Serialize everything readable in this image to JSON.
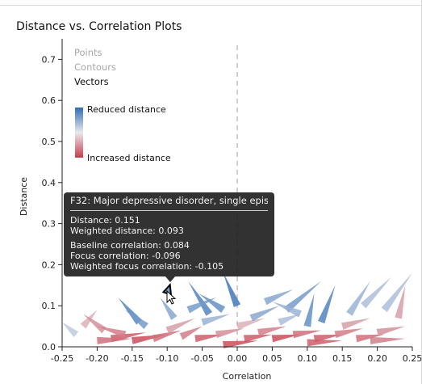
{
  "page": {
    "title": "Distance vs. Correlation Plots"
  },
  "layers": [
    {
      "label": "Points",
      "active": false
    },
    {
      "label": "Contours",
      "active": false
    },
    {
      "label": "Vectors",
      "active": true
    }
  ],
  "legend": {
    "reduced_label": "Reduced distance",
    "increased_label": "Increased distance",
    "reduced_color": "#2f6db5",
    "increased_color": "#c83c4b"
  },
  "tooltip": {
    "title": "F32: Major depressive disorder, single episode",
    "distance": "Distance: 0.151",
    "weighted_distance": "Weighted distance: 0.093",
    "baseline_correlation": "Baseline correlation: 0.084",
    "focus_correlation": "Focus correlation: -0.096",
    "weighted_focus_correlation": "Weighted focus correlation: -0.105"
  },
  "chart_data": {
    "type": "scatter",
    "title": "Distance vs. Correlation Plots",
    "xlabel": "Correlation",
    "ylabel": "Distance",
    "xlim": [
      -0.25,
      0.25
    ],
    "ylim": [
      0.0,
      0.75
    ],
    "xticks": [
      -0.25,
      -0.2,
      -0.15,
      -0.1,
      -0.05,
      0.0,
      0.05,
      0.1,
      0.15,
      0.2,
      0.25
    ],
    "yticks": [
      0.0,
      0.1,
      0.2,
      0.3,
      0.4,
      0.5,
      0.6,
      0.7
    ],
    "xtick_labels": [
      "-0.25",
      "-0.20",
      "-0.15",
      "-0.10",
      "-0.05",
      "0.00",
      "0.05",
      "0.10",
      "0.15",
      "0.20",
      "0.25"
    ],
    "ytick_labels": [
      "0.0",
      "0.1",
      "0.2",
      "0.3",
      "0.4",
      "0.5",
      "0.6",
      "0.7"
    ],
    "reference_line_x": 0.0,
    "encoding": "vectors",
    "vectors": [
      {
        "x0": -0.1,
        "y0": 0.13,
        "x1": -0.096,
        "y1": 0.151,
        "change": -0.6,
        "highlight": true
      },
      {
        "x0": -0.04,
        "y0": 0.08,
        "x1": -0.07,
        "y1": 0.16,
        "change": -0.8
      },
      {
        "x0": -0.02,
        "y0": 0.09,
        "x1": -0.055,
        "y1": 0.13,
        "change": -0.7
      },
      {
        "x0": 0.0,
        "y0": 0.1,
        "x1": -0.02,
        "y1": 0.18,
        "change": -0.9
      },
      {
        "x0": 0.07,
        "y0": 0.09,
        "x1": 0.12,
        "y1": 0.16,
        "change": -0.6
      },
      {
        "x0": 0.12,
        "y0": 0.06,
        "x1": 0.14,
        "y1": 0.15,
        "change": -0.8
      },
      {
        "x0": 0.1,
        "y0": 0.05,
        "x1": 0.11,
        "y1": 0.13,
        "change": -0.7
      },
      {
        "x0": -0.14,
        "y0": 0.06,
        "x1": -0.17,
        "y1": 0.12,
        "change": -0.8
      },
      {
        "x0": -0.13,
        "y0": 0.05,
        "x1": -0.16,
        "y1": 0.09,
        "change": -0.6
      },
      {
        "x0": -0.09,
        "y0": 0.07,
        "x1": -0.11,
        "y1": 0.12,
        "change": -0.5
      },
      {
        "x0": 0.16,
        "y0": 0.08,
        "x1": 0.19,
        "y1": 0.16,
        "change": -0.4
      },
      {
        "x0": 0.18,
        "y0": 0.1,
        "x1": 0.22,
        "y1": 0.17,
        "change": -0.3
      },
      {
        "x0": 0.21,
        "y0": 0.09,
        "x1": 0.25,
        "y1": 0.18,
        "change": -0.3
      },
      {
        "x0": 0.23,
        "y0": 0.07,
        "x1": 0.24,
        "y1": 0.15,
        "change": 0.4
      },
      {
        "x0": -0.22,
        "y0": 0.05,
        "x1": -0.2,
        "y1": 0.09,
        "change": 0.3
      },
      {
        "x0": -0.19,
        "y0": 0.04,
        "x1": -0.22,
        "y1": 0.08,
        "change": 0.5
      },
      {
        "x0": -0.23,
        "y0": 0.03,
        "x1": -0.25,
        "y1": 0.06,
        "change": -0.2
      },
      {
        "x0": -0.18,
        "y0": 0.02,
        "x1": -0.13,
        "y1": 0.035,
        "change": 0.8
      },
      {
        "x0": -0.15,
        "y0": 0.015,
        "x1": -0.1,
        "y1": 0.03,
        "change": 0.9
      },
      {
        "x0": -0.12,
        "y0": 0.02,
        "x1": -0.08,
        "y1": 0.04,
        "change": 0.7
      },
      {
        "x0": -0.08,
        "y0": 0.025,
        "x1": -0.05,
        "y1": 0.05,
        "change": 0.6
      },
      {
        "x0": -0.06,
        "y0": 0.02,
        "x1": -0.02,
        "y1": 0.03,
        "change": 0.8
      },
      {
        "x0": -0.03,
        "y0": 0.03,
        "x1": 0.01,
        "y1": 0.045,
        "change": 0.5
      },
      {
        "x0": 0.01,
        "y0": 0.02,
        "x1": 0.05,
        "y1": 0.03,
        "change": 0.8
      },
      {
        "x0": 0.03,
        "y0": 0.035,
        "x1": 0.07,
        "y1": 0.05,
        "change": 0.6
      },
      {
        "x0": 0.05,
        "y0": 0.02,
        "x1": 0.09,
        "y1": 0.03,
        "change": 0.9
      },
      {
        "x0": 0.08,
        "y0": 0.03,
        "x1": 0.12,
        "y1": 0.04,
        "change": 0.7
      },
      {
        "x0": 0.11,
        "y0": 0.02,
        "x1": 0.15,
        "y1": 0.03,
        "change": 0.8
      },
      {
        "x0": 0.14,
        "y0": 0.03,
        "x1": 0.18,
        "y1": 0.045,
        "change": 0.6
      },
      {
        "x0": 0.17,
        "y0": 0.02,
        "x1": 0.21,
        "y1": 0.03,
        "change": 0.7
      },
      {
        "x0": 0.2,
        "y0": 0.035,
        "x1": 0.24,
        "y1": 0.05,
        "change": 0.5
      },
      {
        "x0": -0.1,
        "y0": 0.04,
        "x1": -0.06,
        "y1": 0.07,
        "change": 0.4
      },
      {
        "x0": 0.0,
        "y0": 0.05,
        "x1": 0.04,
        "y1": 0.07,
        "change": 0.3
      },
      {
        "x0": 0.06,
        "y0": 0.06,
        "x1": 0.09,
        "y1": 0.08,
        "change": -0.3
      },
      {
        "x0": -0.05,
        "y0": 0.06,
        "x1": -0.01,
        "y1": 0.08,
        "change": -0.4
      },
      {
        "x0": 0.02,
        "y0": 0.07,
        "x1": 0.06,
        "y1": 0.1,
        "change": -0.5
      },
      {
        "x0": 0.09,
        "y0": 0.08,
        "x1": 0.05,
        "y1": 0.11,
        "change": -0.4
      },
      {
        "x0": -0.16,
        "y0": 0.03,
        "x1": -0.2,
        "y1": 0.05,
        "change": 0.6
      },
      {
        "x0": 0.15,
        "y0": 0.05,
        "x1": 0.19,
        "y1": 0.07,
        "change": 0.4
      },
      {
        "x0": -0.07,
        "y0": 0.09,
        "x1": -0.03,
        "y1": 0.12,
        "change": -0.6
      },
      {
        "x0": 0.04,
        "y0": 0.11,
        "x1": 0.08,
        "y1": 0.14,
        "change": -0.5
      },
      {
        "x0": -0.02,
        "y0": 0.005,
        "x1": 0.03,
        "y1": 0.015,
        "change": 0.9
      },
      {
        "x0": 0.1,
        "y0": 0.01,
        "x1": 0.15,
        "y1": 0.015,
        "change": 0.8
      },
      {
        "x0": -0.2,
        "y0": 0.015,
        "x1": -0.15,
        "y1": 0.02,
        "change": 0.7
      },
      {
        "x0": 0.19,
        "y0": 0.015,
        "x1": 0.24,
        "y1": 0.02,
        "change": 0.6
      }
    ]
  }
}
